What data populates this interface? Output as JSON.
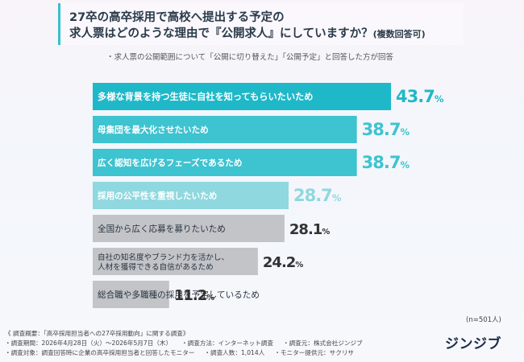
{
  "title": {
    "line1": "27卒の高卒採用で高校へ提出する予定の",
    "line2": "求人票はどのような理由で『公開求人』にしていますか？",
    "line2_suffix": "(複数回答可)"
  },
  "subtitle": "・求人票の公開範囲について「公開に切り替えた」「公開予定」と回答した方が回答",
  "n_label": "(n=501人)",
  "colors": {
    "top": "#1fb8c8",
    "mid": "#3ec3d0",
    "light": "#8fd8df",
    "gray": "#c2c4c8",
    "label_dark": "#2a3440"
  },
  "chart_data": {
    "type": "bar",
    "orientation": "horizontal",
    "categories": [
      "多様な背景を持つ生徒に自社を知ってもらいたいため",
      "母集団を最大化させたいため",
      "広く認知を広げるフェーズであるため",
      "採用の公平性を重視したいため",
      "全国から広く応募を募りたいため",
      "自社の知名度やブランド力を活かし、人材を獲得できる自信があるため",
      "総合職や多職種の採用を予定しているため"
    ],
    "category_lines": [
      [
        "多様な背景を持つ生徒に自社を知ってもらいたいため"
      ],
      [
        "母集団を最大化させたいため"
      ],
      [
        "広く認知を広げるフェーズであるため"
      ],
      [
        "採用の公平性を重視したいため"
      ],
      [
        "全国から広く応募を募りたいため"
      ],
      [
        "自社の知名度やブランド力を活かし、",
        "人材を獲得できる自信があるため"
      ],
      [
        "総合職や多職種の採用を予定しているため"
      ]
    ],
    "values": [
      43.7,
      38.7,
      38.7,
      28.7,
      28.1,
      24.2,
      11.2
    ],
    "value_labels": [
      "43.7",
      "38.7",
      "38.7",
      "28.7",
      "28.1",
      "24.2",
      "11.2"
    ],
    "unit": "%",
    "tiers": [
      "top",
      "mid",
      "mid",
      "light",
      "gray",
      "gray",
      "gray"
    ],
    "xlim": [
      0,
      43.7
    ]
  },
  "footer": {
    "line1": "《 調査概要：「高卒採用担当者への27卒採用動向」に関する調査》",
    "line2a": "・調査期間：2026年4月28日（火）～2026年5月7日（木）",
    "line2b": "・調査方法：インターネット調査",
    "line2c": "・調査元：株式会社ジンジブ",
    "line3a": "・調査対象：調査回答時に企業の高卒採用担当者と回答したモニター",
    "line3b": "・調査人数：1,014人",
    "line3c": "・モニター提供元：サクリサ"
  },
  "logo": "ジンジブ"
}
